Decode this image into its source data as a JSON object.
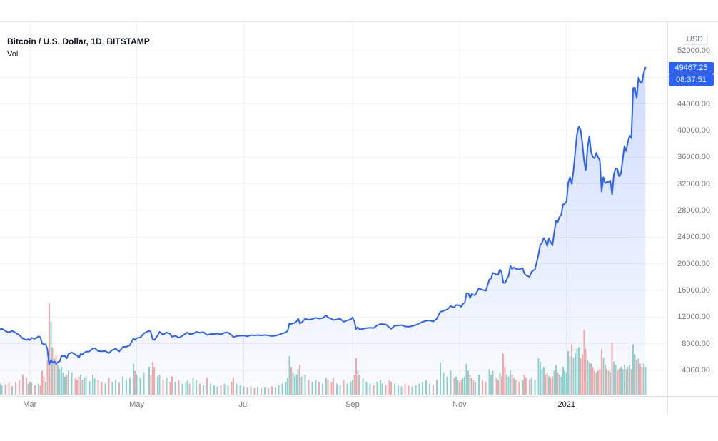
{
  "header": {
    "title": "Bitcoin / U.S. Dollar, 1D, BITSTAMP",
    "volume_label": "Vol"
  },
  "price_axis": {
    "currency_label": "USD"
  },
  "badges": {
    "last_price": "49467.25",
    "countdown": "08:37:51"
  },
  "chart_data": {
    "type": "area",
    "title": "Bitcoin / U.S. Dollar, 1D, BITSTAMP",
    "grid": true,
    "xlim_days": [
      0,
      380.5
    ],
    "ylim_price": [
      143,
      56392
    ],
    "price_ticks": [
      {
        "value": 52000,
        "label": "52000.00"
      },
      {
        "value": 48000,
        "label": "48000.00"
      },
      {
        "value": 44000,
        "label": "44000.00"
      },
      {
        "value": 40000,
        "label": "40000.00"
      },
      {
        "value": 36000,
        "label": "36000.00"
      },
      {
        "value": 32000,
        "label": "32000.00"
      },
      {
        "value": 28000,
        "label": "28000.00"
      },
      {
        "value": 24000,
        "label": "24000.00"
      },
      {
        "value": 20000,
        "label": "20000.00"
      },
      {
        "value": 16000,
        "label": "16000.00"
      },
      {
        "value": 12000,
        "label": "12000.00"
      },
      {
        "value": 8000,
        "label": "8000.00"
      },
      {
        "value": 4000,
        "label": "4000.00"
      }
    ],
    "time_ticks": [
      {
        "day": 17,
        "label": "Mar",
        "year": false
      },
      {
        "day": 78,
        "label": "May",
        "year": false
      },
      {
        "day": 139,
        "label": "Jul",
        "year": false
      },
      {
        "day": 201,
        "label": "Sep",
        "year": false
      },
      {
        "day": 262,
        "label": "Nov",
        "year": false
      },
      {
        "day": 323,
        "label": "2021",
        "year": true
      }
    ],
    "colors": {
      "line": "#2962ff",
      "area_top_opacity": 0.25,
      "area_bottom_opacity": 0.02,
      "vol_up": "#26a69a",
      "vol_down": "#ef5350",
      "grid": "#eef1f5",
      "axis": "#e0e3eb",
      "label": "#787b86",
      "title": "#131722",
      "badge": "#2962ff"
    },
    "points": [
      [
        0,
        10150,
        12
      ],
      [
        1,
        10280,
        10
      ],
      [
        3,
        9920,
        11
      ],
      [
        5,
        9700,
        13
      ],
      [
        7,
        9950,
        9
      ],
      [
        9,
        9620,
        14
      ],
      [
        11,
        9300,
        16
      ],
      [
        13,
        8800,
        22
      ],
      [
        15,
        8550,
        18
      ],
      [
        16,
        8700,
        12
      ],
      [
        17,
        8550,
        14
      ],
      [
        18,
        8900,
        13
      ],
      [
        20,
        8760,
        10
      ],
      [
        22,
        9100,
        12
      ],
      [
        23,
        9000,
        10
      ],
      [
        24,
        8050,
        26
      ],
      [
        25,
        7900,
        20
      ],
      [
        26,
        7920,
        14
      ],
      [
        27,
        7250,
        38
      ],
      [
        28,
        4850,
        100
      ],
      [
        29,
        5600,
        80
      ],
      [
        30,
        5150,
        52
      ],
      [
        31,
        5350,
        40
      ],
      [
        32,
        4950,
        44
      ],
      [
        33,
        5250,
        32
      ],
      [
        34,
        5350,
        28
      ],
      [
        35,
        6150,
        30
      ],
      [
        36,
        6150,
        24
      ],
      [
        37,
        6150,
        20
      ],
      [
        38,
        5800,
        22
      ],
      [
        39,
        6450,
        26
      ],
      [
        41,
        6700,
        24
      ],
      [
        43,
        6350,
        18
      ],
      [
        44,
        6250,
        16
      ],
      [
        45,
        5900,
        20
      ],
      [
        46,
        6450,
        22
      ],
      [
        47,
        6400,
        16
      ],
      [
        48,
        6650,
        18
      ],
      [
        49,
        6800,
        20
      ],
      [
        51,
        6850,
        15
      ],
      [
        53,
        7300,
        22
      ],
      [
        54,
        7350,
        18
      ],
      [
        56,
        6900,
        16
      ],
      [
        58,
        6850,
        14
      ],
      [
        60,
        6900,
        12
      ],
      [
        62,
        6600,
        18
      ],
      [
        64,
        7050,
        14
      ],
      [
        66,
        7250,
        16
      ],
      [
        68,
        6850,
        13
      ],
      [
        70,
        7500,
        20
      ],
      [
        72,
        7550,
        16
      ],
      [
        74,
        7750,
        18
      ],
      [
        76,
        8800,
        34
      ],
      [
        77,
        8600,
        26
      ],
      [
        78,
        8850,
        22
      ],
      [
        80,
        8950,
        18
      ],
      [
        82,
        9550,
        24
      ],
      [
        85,
        9950,
        30
      ],
      [
        86,
        9800,
        22
      ],
      [
        87,
        8700,
        36
      ],
      [
        88,
        8550,
        30
      ],
      [
        90,
        9300,
        20
      ],
      [
        91,
        9800,
        22
      ],
      [
        93,
        9350,
        16
      ],
      [
        95,
        9700,
        18
      ],
      [
        97,
        9500,
        14
      ],
      [
        98,
        9050,
        20
      ],
      [
        100,
        9200,
        14
      ],
      [
        102,
        8900,
        16
      ],
      [
        104,
        9200,
        12
      ],
      [
        106,
        9550,
        14
      ],
      [
        107,
        9700,
        16
      ],
      [
        108,
        9450,
        12
      ],
      [
        110,
        9500,
        18
      ],
      [
        112,
        9800,
        16
      ],
      [
        114,
        9650,
        12
      ],
      [
        116,
        9750,
        10
      ],
      [
        118,
        9300,
        18
      ],
      [
        120,
        9450,
        12
      ],
      [
        122,
        9450,
        10
      ],
      [
        124,
        9530,
        9
      ],
      [
        126,
        9400,
        10
      ],
      [
        128,
        9650,
        12
      ],
      [
        130,
        9700,
        10
      ],
      [
        132,
        9300,
        14
      ],
      [
        133,
        9000,
        18
      ],
      [
        135,
        9150,
        12
      ],
      [
        137,
        9200,
        10
      ],
      [
        139,
        9230,
        9
      ],
      [
        141,
        9100,
        8
      ],
      [
        143,
        9300,
        9
      ],
      [
        145,
        9250,
        7
      ],
      [
        147,
        9300,
        8
      ],
      [
        149,
        9250,
        7
      ],
      [
        151,
        9300,
        8
      ],
      [
        153,
        9250,
        7
      ],
      [
        155,
        9150,
        9
      ],
      [
        157,
        9200,
        8
      ],
      [
        159,
        9350,
        10
      ],
      [
        161,
        9550,
        12
      ],
      [
        163,
        9700,
        14
      ],
      [
        164,
        9950,
        18
      ],
      [
        165,
        11050,
        42
      ],
      [
        166,
        10950,
        30
      ],
      [
        167,
        11100,
        24
      ],
      [
        168,
        11100,
        20
      ],
      [
        169,
        11350,
        22
      ],
      [
        170,
        11800,
        28
      ],
      [
        171,
        11050,
        32
      ],
      [
        172,
        11200,
        20
      ],
      [
        174,
        11750,
        22
      ],
      [
        176,
        11600,
        16
      ],
      [
        178,
        11700,
        14
      ],
      [
        180,
        11900,
        16
      ],
      [
        182,
        11780,
        14
      ],
      [
        184,
        11850,
        12
      ],
      [
        186,
        12250,
        18
      ],
      [
        187,
        11950,
        16
      ],
      [
        189,
        11750,
        14
      ],
      [
        190,
        11550,
        18
      ],
      [
        192,
        11650,
        12
      ],
      [
        194,
        11750,
        10
      ],
      [
        196,
        11300,
        16
      ],
      [
        198,
        11500,
        12
      ],
      [
        200,
        11650,
        14
      ],
      [
        201,
        11950,
        16
      ],
      [
        202,
        11400,
        22
      ],
      [
        203,
        10200,
        40
      ],
      [
        204,
        10500,
        26
      ],
      [
        205,
        10150,
        22
      ],
      [
        207,
        10250,
        18
      ],
      [
        209,
        10350,
        14
      ],
      [
        211,
        10400,
        12
      ],
      [
        213,
        10350,
        10
      ],
      [
        215,
        10750,
        14
      ],
      [
        217,
        10950,
        16
      ],
      [
        218,
        10950,
        12
      ],
      [
        220,
        10900,
        10
      ],
      [
        222,
        10450,
        16
      ],
      [
        223,
        10250,
        14
      ],
      [
        225,
        10700,
        12
      ],
      [
        227,
        10750,
        10
      ],
      [
        229,
        10800,
        9
      ],
      [
        231,
        10600,
        12
      ],
      [
        233,
        10550,
        10
      ],
      [
        235,
        10650,
        9
      ],
      [
        237,
        10800,
        10
      ],
      [
        239,
        11050,
        12
      ],
      [
        241,
        11300,
        14
      ],
      [
        243,
        11450,
        16
      ],
      [
        245,
        11500,
        12
      ],
      [
        247,
        11350,
        10
      ],
      [
        249,
        11750,
        16
      ],
      [
        251,
        12800,
        35
      ],
      [
        253,
        12950,
        24
      ],
      [
        255,
        13150,
        20
      ],
      [
        257,
        13650,
        26
      ],
      [
        259,
        13450,
        18
      ],
      [
        260,
        13800,
        20
      ],
      [
        261,
        13800,
        16
      ],
      [
        262,
        13750,
        14
      ],
      [
        263,
        13550,
        16
      ],
      [
        264,
        14000,
        18
      ],
      [
        265,
        14150,
        20
      ],
      [
        266,
        15600,
        34
      ],
      [
        267,
        15600,
        26
      ],
      [
        268,
        14850,
        22
      ],
      [
        269,
        15480,
        18
      ],
      [
        270,
        15300,
        16
      ],
      [
        271,
        15300,
        14
      ],
      [
        273,
        16300,
        22
      ],
      [
        275,
        16100,
        16
      ],
      [
        277,
        15950,
        14
      ],
      [
        279,
        17650,
        28
      ],
      [
        280,
        17800,
        22
      ],
      [
        281,
        18650,
        26
      ],
      [
        283,
        18400,
        18
      ],
      [
        284,
        18350,
        16
      ],
      [
        285,
        19150,
        24
      ],
      [
        286,
        18750,
        20
      ],
      [
        287,
        17150,
        45
      ],
      [
        288,
        17100,
        30
      ],
      [
        289,
        17750,
        22
      ],
      [
        290,
        18200,
        20
      ],
      [
        291,
        19700,
        26
      ],
      [
        292,
        19200,
        22
      ],
      [
        293,
        19450,
        18
      ],
      [
        294,
        19250,
        16
      ],
      [
        296,
        19150,
        14
      ],
      [
        298,
        19350,
        16
      ],
      [
        299,
        18550,
        22
      ],
      [
        300,
        18250,
        18
      ],
      [
        302,
        18050,
        16
      ],
      [
        303,
        18800,
        18
      ],
      [
        305,
        19150,
        16
      ],
      [
        307,
        21350,
        40
      ],
      [
        308,
        22800,
        36
      ],
      [
        309,
        23100,
        28
      ],
      [
        310,
        23850,
        30
      ],
      [
        311,
        23450,
        22
      ],
      [
        312,
        22700,
        24
      ],
      [
        313,
        23800,
        20
      ],
      [
        314,
        23250,
        18
      ],
      [
        315,
        22750,
        20
      ],
      [
        316,
        24700,
        26
      ],
      [
        317,
        26450,
        32
      ],
      [
        318,
        26250,
        24
      ],
      [
        319,
        27050,
        22
      ],
      [
        320,
        27350,
        20
      ],
      [
        321,
        28900,
        30
      ],
      [
        322,
        29000,
        26
      ],
      [
        323,
        29350,
        24
      ],
      [
        324,
        32200,
        48
      ],
      [
        325,
        33000,
        42
      ],
      [
        326,
        32000,
        55
      ],
      [
        327,
        34000,
        40
      ],
      [
        328,
        36850,
        46
      ],
      [
        329,
        39450,
        50
      ],
      [
        330,
        40600,
        52
      ],
      [
        331,
        40150,
        40
      ],
      [
        332,
        38250,
        44
      ],
      [
        333,
        35450,
        71
      ],
      [
        334,
        34050,
        50
      ],
      [
        335,
        37400,
        38
      ],
      [
        336,
        39150,
        36
      ],
      [
        337,
        36800,
        34
      ],
      [
        338,
        36050,
        30
      ],
      [
        339,
        35850,
        26
      ],
      [
        340,
        36650,
        24
      ],
      [
        341,
        36000,
        26
      ],
      [
        342,
        35500,
        28
      ],
      [
        343,
        30850,
        50
      ],
      [
        344,
        33000,
        40
      ],
      [
        345,
        32100,
        32
      ],
      [
        346,
        32300,
        28
      ],
      [
        347,
        32250,
        26
      ],
      [
        348,
        32500,
        24
      ],
      [
        349,
        30450,
        57
      ],
      [
        350,
        33450,
        36
      ],
      [
        351,
        34300,
        32
      ],
      [
        352,
        34250,
        26
      ],
      [
        353,
        33150,
        28
      ],
      [
        354,
        33500,
        30
      ],
      [
        355,
        35500,
        28
      ],
      [
        356,
        37650,
        32
      ],
      [
        357,
        36950,
        28
      ],
      [
        358,
        38300,
        30
      ],
      [
        359,
        39250,
        32
      ],
      [
        360,
        38850,
        28
      ],
      [
        361,
        46400,
        55
      ],
      [
        362,
        46450,
        44
      ],
      [
        363,
        44850,
        38
      ],
      [
        364,
        47950,
        40
      ],
      [
        365,
        47400,
        34
      ],
      [
        366,
        47100,
        30
      ],
      [
        367,
        48650,
        34
      ],
      [
        368,
        49467.25,
        30
      ]
    ]
  }
}
